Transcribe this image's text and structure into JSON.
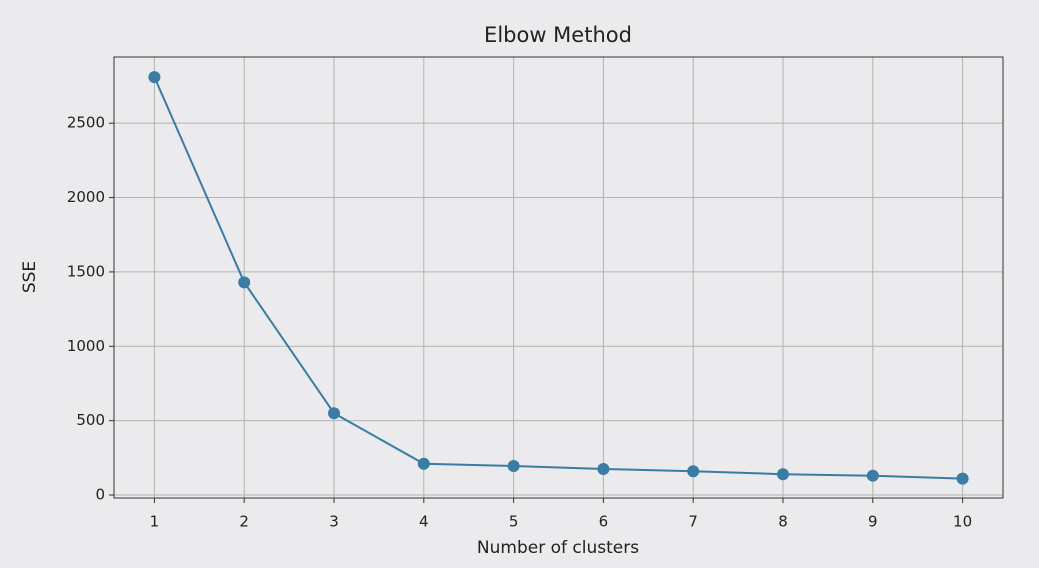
{
  "chart_data": {
    "type": "line",
    "title": "Elbow Method",
    "x_label": "Number of clusters",
    "y_label": "SSE",
    "x": [
      1,
      2,
      3,
      4,
      5,
      6,
      7,
      8,
      9,
      10
    ],
    "series": [
      {
        "color": "#3a7ca5",
        "values": [
          2810,
          1430,
          550,
          210,
          195,
          175,
          160,
          140,
          130,
          110
        ]
      }
    ],
    "xlim": [
      0.55,
      10.45
    ],
    "ylim": [
      -20,
      2945
    ],
    "xticks": [
      1,
      2,
      3,
      4,
      5,
      6,
      7,
      8,
      9,
      10
    ],
    "yticks": [
      0,
      500,
      1000,
      1500,
      2000,
      2500
    ],
    "grid": true,
    "markers": true
  }
}
